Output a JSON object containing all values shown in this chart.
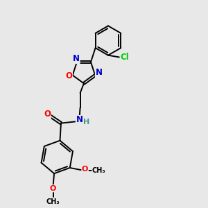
{
  "bg_color": "#e8e8e8",
  "bond_color": "#000000",
  "atom_colors": {
    "O": "#ff0000",
    "N": "#0000cd",
    "Cl": "#00cc00",
    "C": "#000000",
    "H": "#4a9090"
  },
  "lw": 1.4,
  "font_size": 8.5
}
